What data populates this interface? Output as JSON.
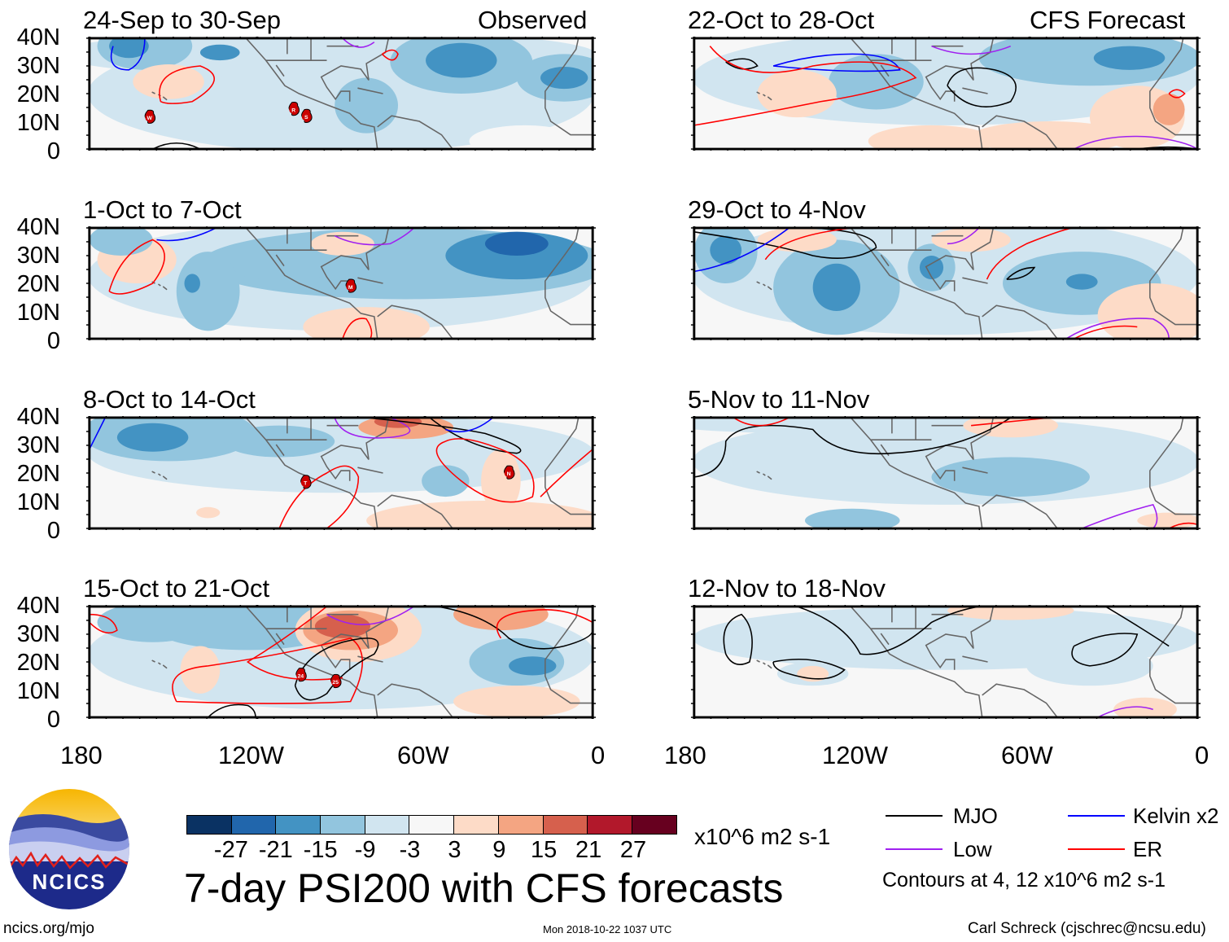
{
  "headers": {
    "observed": "Observed",
    "forecast": "CFS Forecast"
  },
  "panels": {
    "left": [
      {
        "title": "24-Sep to 30-Sep",
        "storms": [
          "W",
          "R",
          "S"
        ]
      },
      {
        "title": "1-Oct to 7-Oct",
        "storms": [
          "M"
        ]
      },
      {
        "title": "8-Oct to 14-Oct",
        "storms": [
          "T",
          "N"
        ]
      },
      {
        "title": "15-Oct to 21-Oct",
        "storms": [
          "24",
          "25"
        ]
      }
    ],
    "right": [
      {
        "title": "22-Oct to 28-Oct"
      },
      {
        "title": "29-Oct to 4-Nov"
      },
      {
        "title": "5-Nov to 11-Nov"
      },
      {
        "title": "12-Nov to 18-Nov"
      }
    ]
  },
  "axes": {
    "lat_labels": [
      "40N",
      "30N",
      "20N",
      "10N",
      "0"
    ],
    "lon_labels": [
      "180",
      "120W",
      "60W",
      "0"
    ]
  },
  "colorbar": {
    "colors": [
      "#0a3263",
      "#2166ac",
      "#4393c3",
      "#92c5de",
      "#d1e5f0",
      "#f7f7f7",
      "#fddbc7",
      "#f4a582",
      "#d6604d",
      "#b2182b",
      "#67001f"
    ],
    "labels": [
      "-27",
      "-21",
      "-15",
      "-9",
      "-3",
      "3",
      "9",
      "15",
      "21",
      "27"
    ],
    "units": "x10^6 m2 s-1"
  },
  "title": "7-day PSI200 with CFS forecasts",
  "legend": {
    "items": [
      {
        "label": "MJO",
        "color": "#000000"
      },
      {
        "label": "Kelvin x2",
        "color": "#0000ff"
      },
      {
        "label": "Low",
        "color": "#a020f0"
      },
      {
        "label": "ER",
        "color": "#ff0000"
      }
    ],
    "note": "Contours at 4, 12 x10^6 m2 s-1"
  },
  "logo_text": "NCICS",
  "footer": {
    "url": "ncics.org/mjo",
    "timestamp": "Mon 2018-10-22 1037 UTC",
    "credit": "Carl Schreck (cjschrec@ncsu.edu)"
  }
}
